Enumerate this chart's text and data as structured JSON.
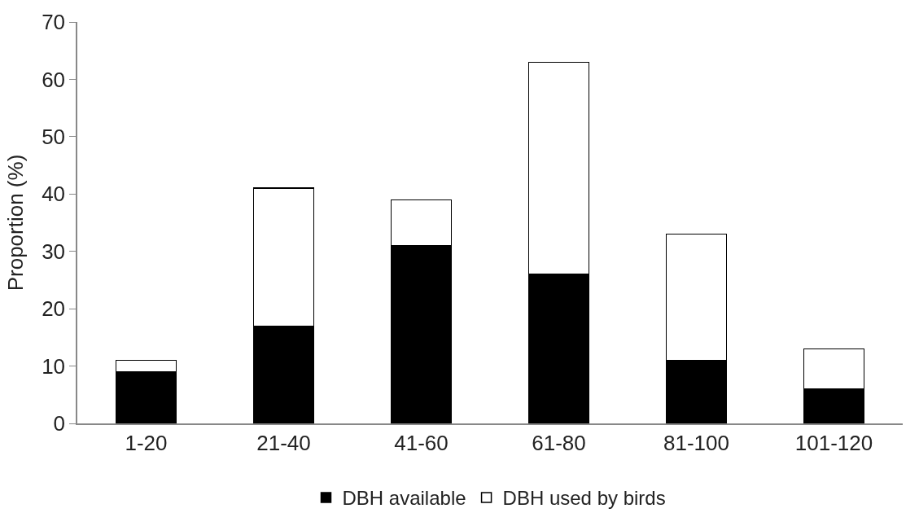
{
  "chart_data": {
    "type": "bar",
    "stacked": true,
    "ylabel": "Proportion (%)",
    "categories": [
      "1-20",
      "21-40",
      "41-60",
      "61-80",
      "81-100",
      "101-120"
    ],
    "series": [
      {
        "name": "DBH available",
        "color": "#000000",
        "values": [
          9,
          17,
          31,
          26,
          11,
          6
        ]
      },
      {
        "name": "DBH used by birds",
        "color": "#ffffff",
        "values": [
          2,
          24,
          8,
          37,
          22,
          7
        ]
      }
    ],
    "ylim": [
      0,
      70
    ],
    "yticks": [
      0,
      10,
      20,
      30,
      40,
      50,
      60,
      70
    ],
    "legend": "bottom"
  }
}
